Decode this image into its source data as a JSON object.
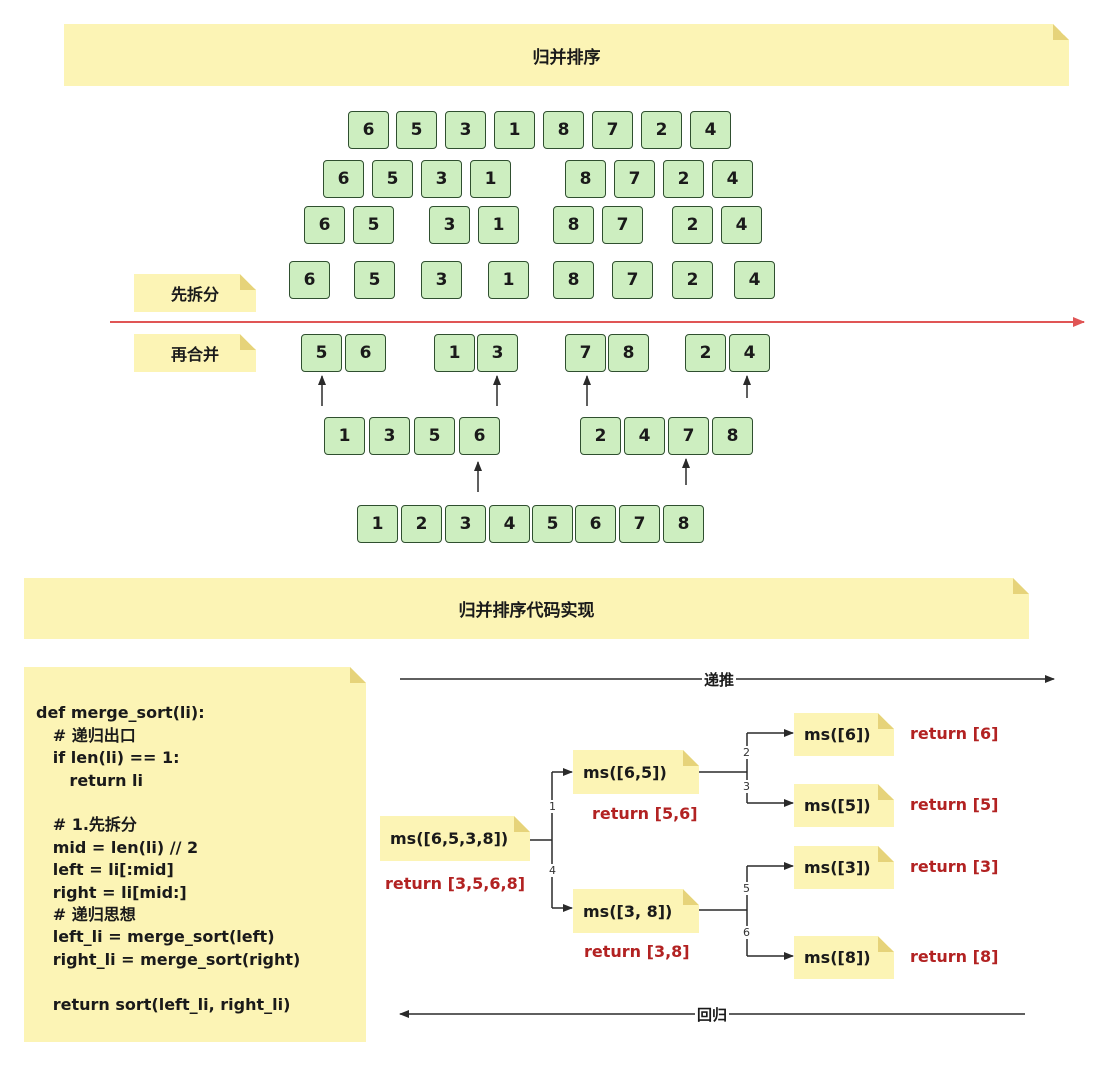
{
  "title_top": "归并排序",
  "title_code": "归并排序代码实现",
  "split_label": "先拆分",
  "merge_label": "再合并",
  "split_levels": [
    [
      "6",
      "5",
      "3",
      "1",
      "8",
      "7",
      "2",
      "4"
    ],
    [
      "6",
      "5",
      "3",
      "1",
      "8",
      "7",
      "2",
      "4"
    ],
    [
      "6",
      "5",
      "3",
      "1",
      "8",
      "7",
      "2",
      "4"
    ],
    [
      "6",
      "5",
      "3",
      "1",
      "8",
      "7",
      "2",
      "4"
    ]
  ],
  "merge_levels": [
    [
      "5",
      "6",
      "1",
      "3",
      "7",
      "8",
      "2",
      "4"
    ],
    [
      "1",
      "3",
      "5",
      "6",
      "2",
      "4",
      "7",
      "8"
    ],
    [
      "1",
      "2",
      "3",
      "4",
      "5",
      "6",
      "7",
      "8"
    ]
  ],
  "code_lines": [
    "def merge_sort(li):",
    "   # 递归出口",
    "   if len(li) == 1:",
    "      return li",
    "",
    "   # 1.先拆分",
    "   mid = len(li) // 2",
    "   left = li[:mid]",
    "   right = li[mid:]",
    "   # 递归思想",
    "   left_li = merge_sort(left)",
    "   right_li = merge_sort(right)",
    "",
    "   return sort(left_li, right_li)"
  ],
  "forward_label": "递推",
  "backward_label": "回归",
  "calls": {
    "root": "ms([6,5,3,8])",
    "left": "ms([6,5])",
    "right": "ms([3, 8])",
    "ll": "ms([6])",
    "lr": "ms([5])",
    "rl": "ms([3])",
    "rr": "ms([8])"
  },
  "returns": {
    "root": "return [3,5,6,8]",
    "left": "return [5,6]",
    "right": "return [3,8]",
    "ll": "return [6]",
    "lr": "return [5]",
    "rl": "return [3]",
    "rr": "return [8]"
  },
  "steps": [
    "1",
    "2",
    "3",
    "4",
    "5",
    "6"
  ],
  "colors": {
    "note_bg": "#fcf4b5",
    "cell_bg": "#cdeec0",
    "divider": "#e05555",
    "return_text": "#b22222"
  }
}
